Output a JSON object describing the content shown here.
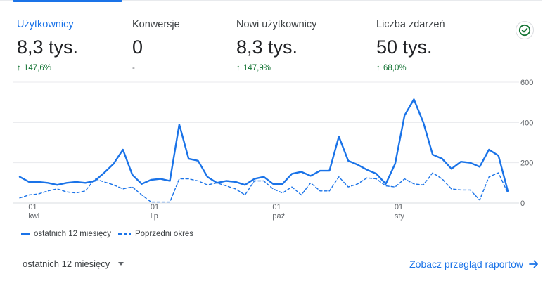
{
  "metrics": [
    {
      "label": "Użytkownicy",
      "value": "8,3 tys.",
      "delta": "147,6%",
      "trend": "up"
    },
    {
      "label": "Konwersje",
      "value": "0",
      "delta": "-",
      "trend": "none"
    },
    {
      "label": "Nowi użytkownicy",
      "value": "8,3 tys.",
      "delta": "147,9%",
      "trend": "up"
    },
    {
      "label": "Liczba zdarzeń",
      "value": "50 tys.",
      "delta": "68,0%",
      "trend": "up"
    }
  ],
  "legend": {
    "current": "ostatnich 12 miesięcy",
    "previous": "Poprzedni okres"
  },
  "footer": {
    "period_label": "ostatnich 12 miesięcy",
    "report_link": "Zobacz przegląd raportów"
  },
  "colors": {
    "accent": "#1a73e8",
    "series": "#1a73e8",
    "positive": "#137333",
    "grid": "#e8eaed"
  },
  "icons": {
    "status": "check-circle-icon",
    "dropdown": "caret-down-icon",
    "link": "arrow-right-icon"
  },
  "chart_data": {
    "type": "line",
    "title": "",
    "xlabel": "",
    "ylabel": "",
    "ylim": [
      0,
      600
    ],
    "y_ticks": [
      0,
      200,
      400,
      600
    ],
    "y_axis_position": "right",
    "grid": true,
    "legend_position": "bottom-left",
    "x_ticks": [
      {
        "day": "01",
        "month": "kwi",
        "index": 1
      },
      {
        "day": "01",
        "month": "lip",
        "index": 14
      },
      {
        "day": "01",
        "month": "paź",
        "index": 27
      },
      {
        "day": "01",
        "month": "sty",
        "index": 40
      }
    ],
    "series": [
      {
        "name": "ostatnich 12 miesięcy",
        "style": "solid",
        "values": [
          130,
          105,
          105,
          100,
          90,
          100,
          105,
          100,
          110,
          150,
          195,
          265,
          140,
          95,
          115,
          120,
          110,
          390,
          220,
          210,
          130,
          100,
          110,
          105,
          90,
          120,
          130,
          95,
          95,
          145,
          155,
          135,
          160,
          160,
          330,
          210,
          190,
          165,
          145,
          95,
          195,
          435,
          515,
          400,
          240,
          220,
          170,
          205,
          200,
          180,
          265,
          235,
          60
        ]
      },
      {
        "name": "Poprzedni okres",
        "style": "dashed",
        "values": [
          25,
          40,
          45,
          60,
          70,
          55,
          50,
          60,
          120,
          105,
          90,
          70,
          80,
          40,
          5,
          5,
          5,
          120,
          120,
          110,
          90,
          100,
          85,
          70,
          40,
          110,
          110,
          70,
          50,
          80,
          40,
          100,
          60,
          60,
          130,
          80,
          95,
          125,
          120,
          85,
          80,
          120,
          95,
          90,
          150,
          120,
          70,
          65,
          65,
          15,
          130,
          150,
          50
        ]
      }
    ]
  }
}
